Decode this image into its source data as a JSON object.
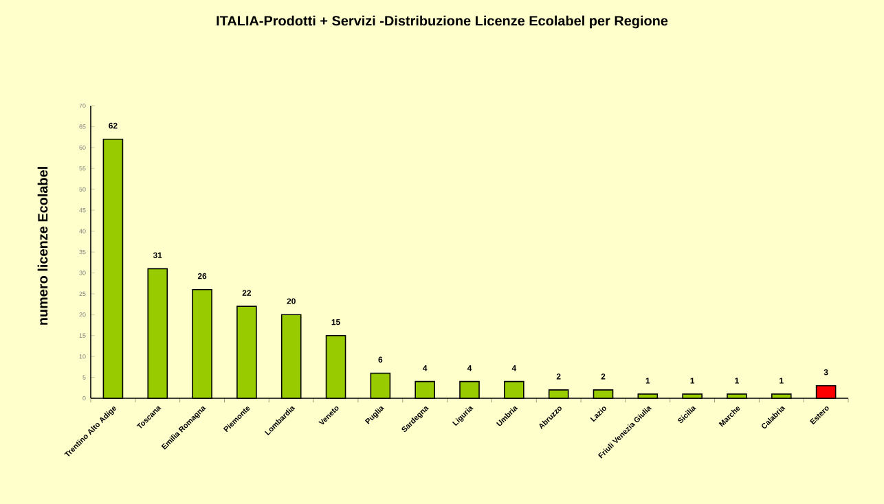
{
  "chart_data": {
    "type": "bar",
    "title": "ITALIA-Prodotti + Servizi -Distribuzione Licenze Ecolabel per Regione",
    "ylabel": "numero licenze Ecolabel",
    "categories": [
      "Trentino Alto Adige",
      "Toscana",
      "Emilia Romagna",
      "Piemonte",
      "Lombardia",
      "Veneto",
      "Puglia",
      "Sardegna",
      "Liguria",
      "Umbria",
      "Abruzzo",
      "Lazio",
      "Friuli Venezia Giulia",
      "Sicilia",
      "Marche",
      "Calabria",
      "Estero"
    ],
    "values": [
      62,
      31,
      26,
      22,
      20,
      15,
      6,
      4,
      4,
      4,
      2,
      2,
      1,
      1,
      1,
      1,
      3
    ],
    "colors": [
      "#99cc00",
      "#99cc00",
      "#99cc00",
      "#99cc00",
      "#99cc00",
      "#99cc00",
      "#99cc00",
      "#99cc00",
      "#99cc00",
      "#99cc00",
      "#99cc00",
      "#99cc00",
      "#99cc00",
      "#99cc00",
      "#99cc00",
      "#99cc00",
      "#ff0000"
    ],
    "ylim": [
      0,
      70
    ],
    "yticks": [
      0,
      5,
      10,
      15,
      20,
      25,
      30,
      35,
      40,
      45,
      50,
      55,
      60,
      65,
      70
    ],
    "data_labels": true,
    "grid": false
  }
}
